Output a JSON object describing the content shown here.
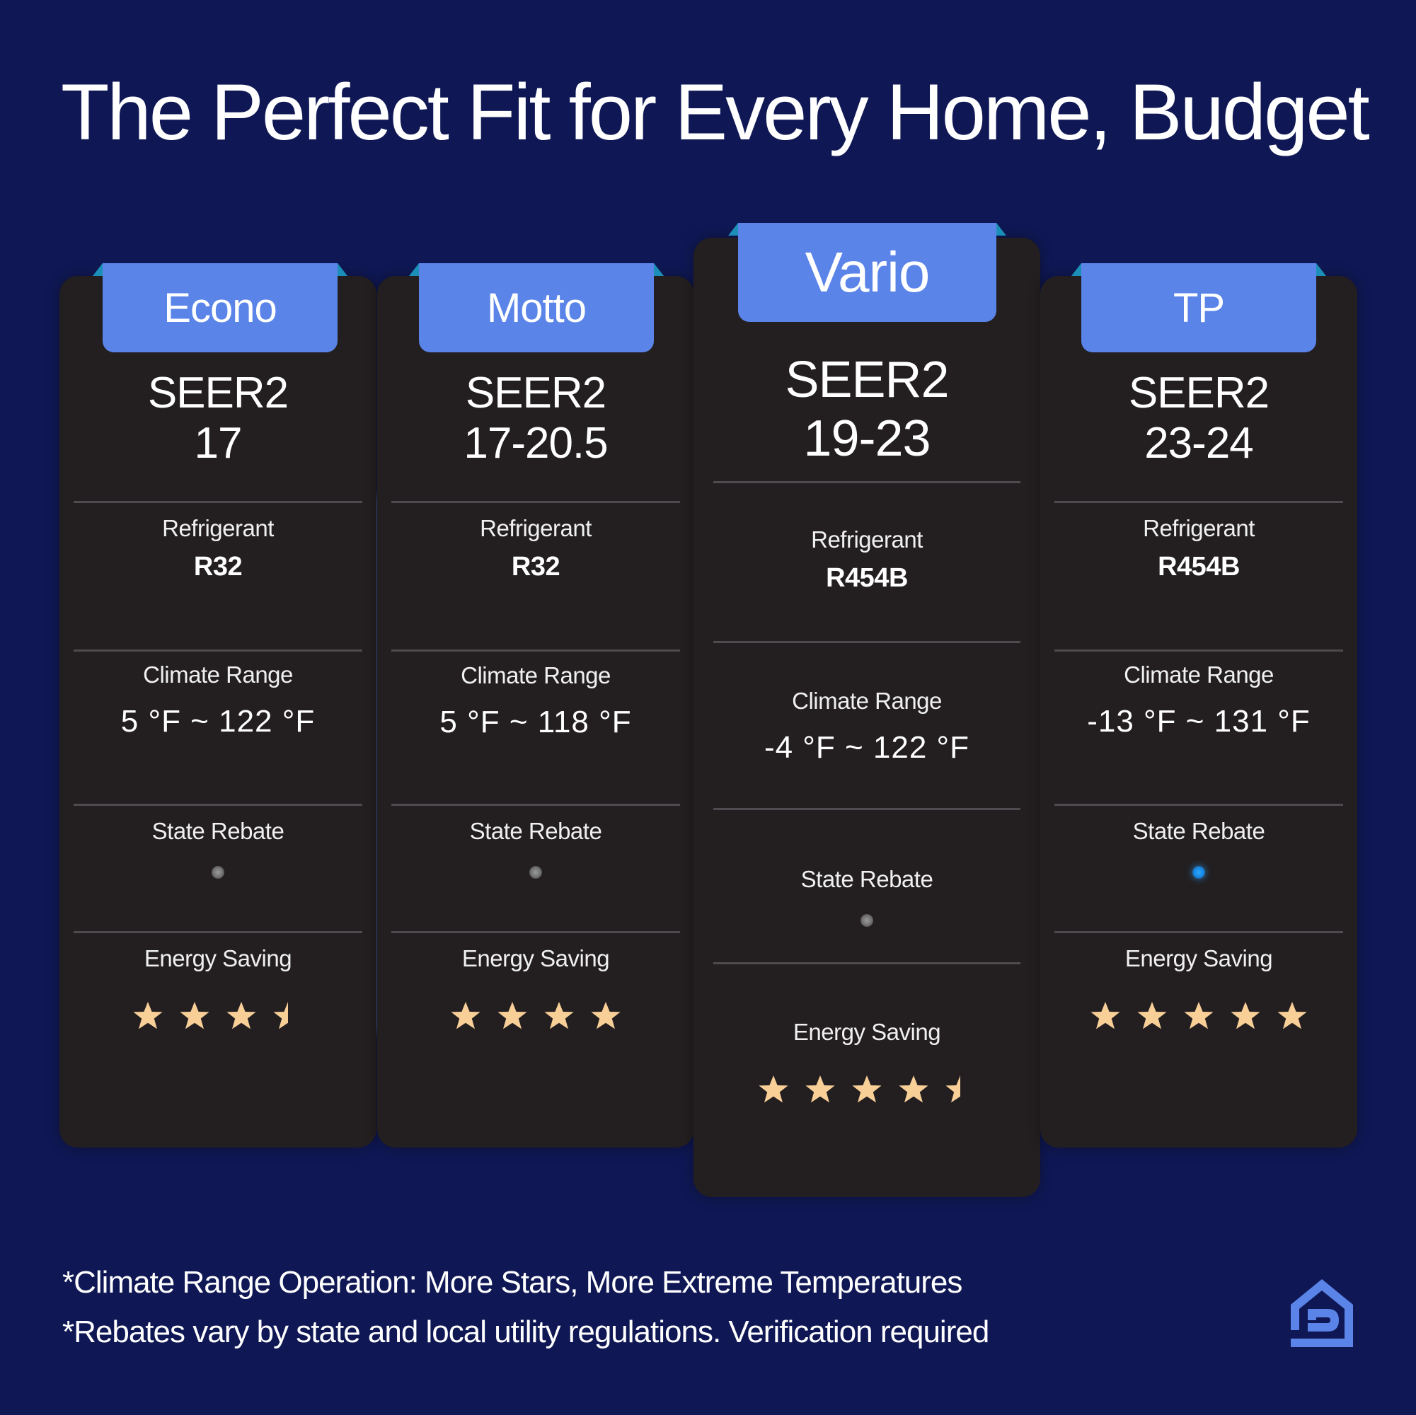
{
  "title": "The Perfect Fit for Every Home, Budget",
  "colors": {
    "background": "#0f1854",
    "card": "#231f20",
    "tab": "#5a84e8",
    "tab_fold": "#1c8fb8",
    "star": "#f9cf98",
    "rebate_on": "#2aa7ff",
    "rebate_off": "#8a8a8a",
    "logo": "#5a84e8"
  },
  "labels": {
    "seer": "SEER2",
    "refrigerant": "Refrigerant",
    "climate_range": "Climate Range",
    "state_rebate": "State Rebate",
    "energy_saving": "Energy Saving"
  },
  "products": [
    {
      "name": "Econo",
      "seer2": "17",
      "refrigerant": "R32",
      "climate_range": "5 °F ~ 122 °F",
      "state_rebate": false,
      "energy_saving_stars": 3.5
    },
    {
      "name": "Motto",
      "seer2": "17-20.5",
      "refrigerant": "R32",
      "climate_range": "5 °F ~ 118 °F",
      "state_rebate": false,
      "energy_saving_stars": 4
    },
    {
      "name": "Vario",
      "seer2": "19-23",
      "refrigerant": "R454B",
      "climate_range": "-4 °F ~ 122 °F",
      "state_rebate": false,
      "energy_saving_stars": 4.5,
      "featured": true
    },
    {
      "name": "TP",
      "seer2": "23-24",
      "refrigerant": "R454B",
      "climate_range": "-13 °F ~ 131 °F",
      "state_rebate": true,
      "energy_saving_stars": 5
    }
  ],
  "footnotes": [
    "*Climate Range Operation: More Stars, More Extreme Temperatures",
    "*Rebates vary by state and local utility regulations. Verification required"
  ],
  "logo": {
    "icon": "house-d-logo-icon"
  }
}
